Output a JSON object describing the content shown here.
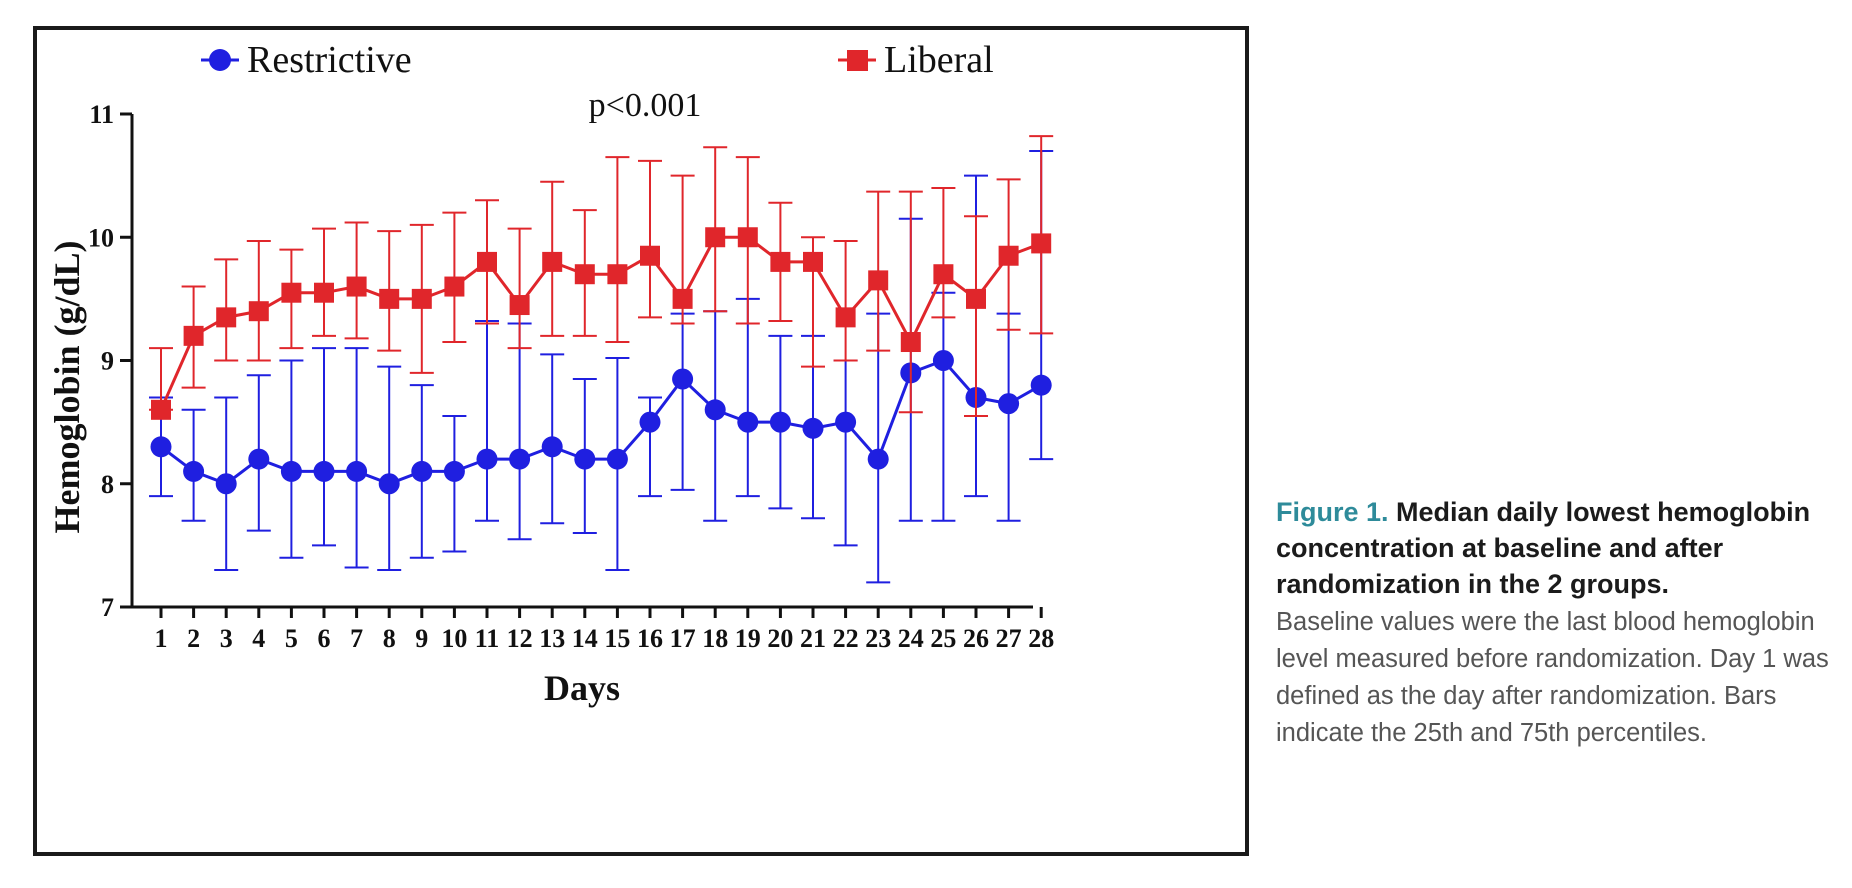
{
  "figure_caption": {
    "figure_number": "Figure 1.",
    "title": "Median daily lowest hemoglobin concentration at baseline and after randomization in the 2 groups.",
    "body": "Baseline values were the last blood hemoglobin level measured before randomization. Day 1 was defined as the day after randomization. Bars indicate the 25th and 75th percentiles.",
    "figure_number_color": "#2e8b9a"
  },
  "chart_data": {
    "type": "line",
    "title": "",
    "annotation": "p<0.001",
    "xlabel": "Days",
    "ylabel": "Hemoglobin (g/dL)",
    "ylim": [
      7,
      11
    ],
    "yticks": [
      7,
      8,
      9,
      10,
      11
    ],
    "categories": [
      1,
      2,
      3,
      4,
      5,
      6,
      7,
      8,
      9,
      10,
      11,
      12,
      13,
      14,
      15,
      16,
      17,
      18,
      19,
      20,
      21,
      22,
      23,
      24,
      25,
      26,
      27,
      28
    ],
    "legend": {
      "placement": "top"
    },
    "grid": false,
    "error_bars": "25th and 75th percentiles",
    "series": [
      {
        "name": "Restrictive",
        "color": "#1f1fe0",
        "marker": "circle",
        "values": [
          8.3,
          8.1,
          8.0,
          8.2,
          8.1,
          8.1,
          8.1,
          8.0,
          8.1,
          8.1,
          8.2,
          8.2,
          8.3,
          8.2,
          8.2,
          8.5,
          8.85,
          8.6,
          8.5,
          8.5,
          8.45,
          8.5,
          8.2,
          8.9,
          9.0,
          8.7,
          8.65,
          8.8
        ],
        "lower": [
          7.9,
          7.7,
          7.3,
          7.62,
          7.4,
          7.5,
          7.32,
          7.3,
          7.4,
          7.45,
          7.7,
          7.55,
          7.68,
          7.6,
          7.3,
          7.9,
          7.95,
          7.7,
          7.9,
          7.8,
          7.72,
          7.5,
          7.2,
          7.7,
          7.7,
          7.9,
          7.7,
          8.2
        ],
        "upper": [
          8.7,
          8.6,
          8.7,
          8.88,
          9.0,
          9.1,
          9.1,
          8.95,
          8.8,
          8.55,
          9.32,
          9.3,
          9.05,
          8.85,
          9.02,
          8.7,
          9.38,
          9.4,
          9.5,
          9.2,
          9.2,
          9.0,
          9.38,
          10.15,
          9.55,
          10.5,
          9.38,
          10.7
        ]
      },
      {
        "name": "Liberal",
        "color": "#e0262b",
        "marker": "square",
        "values": [
          8.6,
          9.2,
          9.35,
          9.4,
          9.55,
          9.55,
          9.6,
          9.5,
          9.5,
          9.6,
          9.8,
          9.45,
          9.8,
          9.7,
          9.7,
          9.85,
          9.5,
          10.0,
          10.0,
          9.8,
          9.8,
          9.35,
          9.65,
          9.15,
          9.7,
          9.5,
          9.85,
          9.95
        ],
        "lower": [
          8.6,
          8.78,
          9.0,
          9.0,
          9.1,
          9.2,
          9.18,
          9.08,
          8.9,
          9.15,
          9.3,
          9.1,
          9.2,
          9.2,
          9.15,
          9.35,
          9.3,
          9.4,
          9.3,
          9.32,
          8.95,
          9.0,
          9.08,
          8.58,
          9.35,
          8.55,
          9.25,
          9.22
        ],
        "upper": [
          9.1,
          9.6,
          9.82,
          9.97,
          9.9,
          10.07,
          10.12,
          10.05,
          10.1,
          10.2,
          10.3,
          10.07,
          10.45,
          10.22,
          10.65,
          10.62,
          10.5,
          10.73,
          10.65,
          10.28,
          10.0,
          9.97,
          10.37,
          10.37,
          10.4,
          10.17,
          10.47,
          10.82
        ]
      }
    ]
  }
}
